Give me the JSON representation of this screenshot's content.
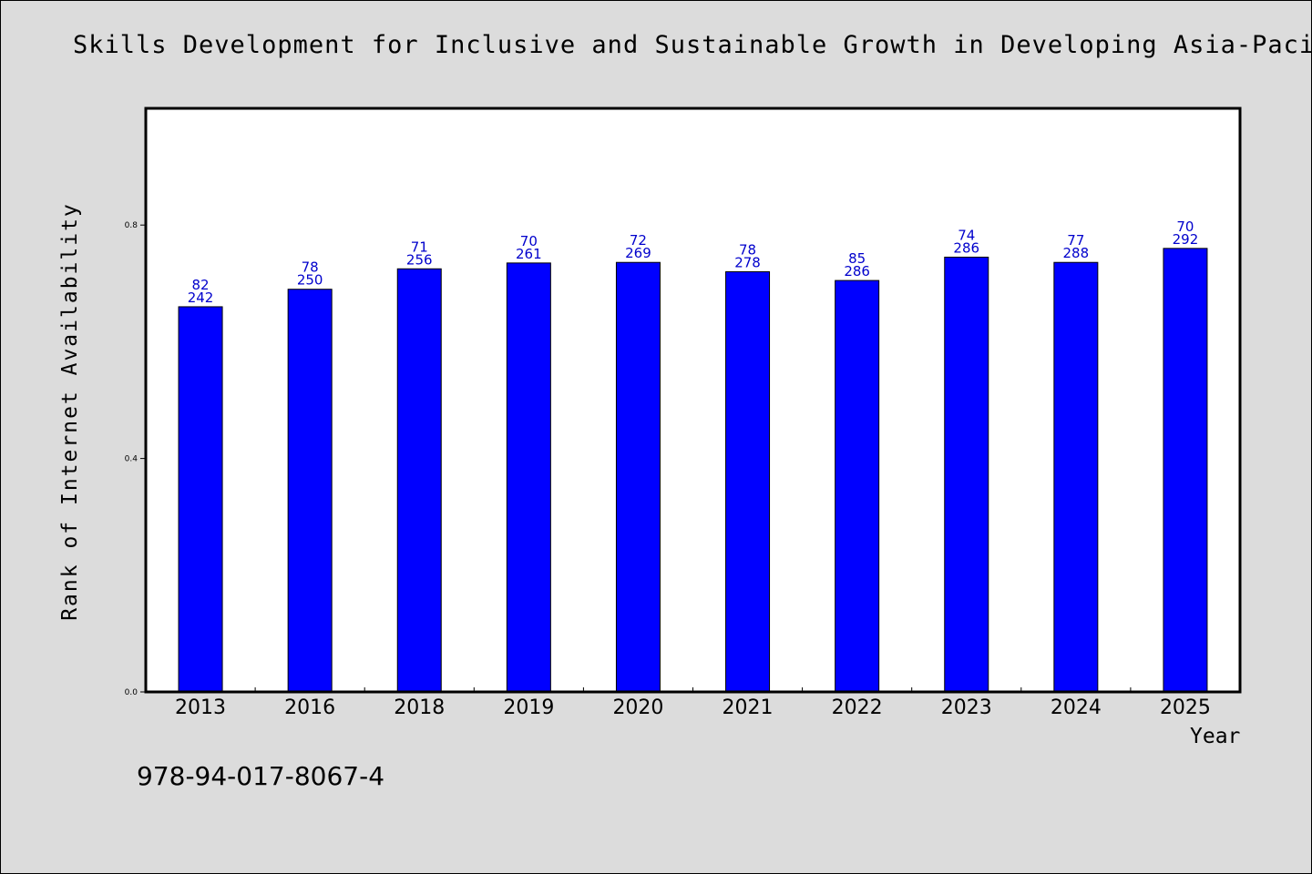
{
  "chart_data": {
    "type": "bar",
    "title": "Skills Development for Inclusive and Sustainable Growth in Developing Asia-Pacif",
    "xlabel": "Year",
    "ylabel": "Rank of Internet Availability",
    "categories": [
      "2013",
      "2016",
      "2018",
      "2019",
      "2020",
      "2021",
      "2022",
      "2023",
      "2024",
      "2025"
    ],
    "series": [
      {
        "values": [
          0.66,
          0.69,
          0.725,
          0.735,
          0.736,
          0.72,
          0.705,
          0.745,
          0.736,
          0.76
        ],
        "label_top": [
          "82",
          "78",
          "71",
          "70",
          "72",
          "78",
          "85",
          "74",
          "77",
          "70"
        ],
        "label_bottom": [
          "242",
          "250",
          "256",
          "261",
          "269",
          "278",
          "286",
          "286",
          "288",
          "292"
        ]
      }
    ],
    "yticks": [
      "0.0",
      "0.4",
      "0.8"
    ],
    "ylim": [
      0,
      1.0
    ],
    "grid": false,
    "bar_color": "#0000ff",
    "label_color": "#0000cc",
    "plot_background": "#ffffff",
    "page_background": "#dcdcdc"
  },
  "footer": {
    "isbn": "978-94-017-8067-4"
  }
}
